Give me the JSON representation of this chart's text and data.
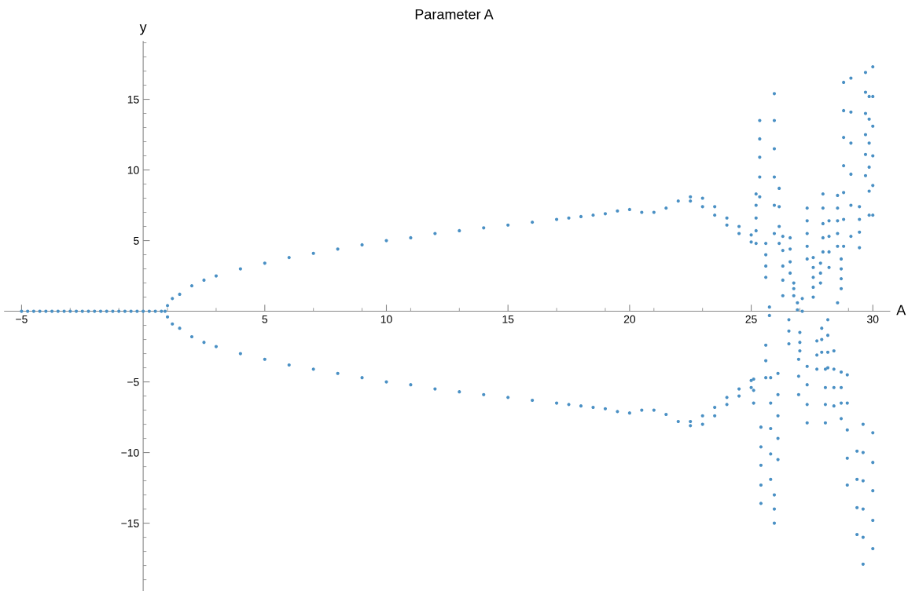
{
  "chart_data": {
    "type": "scatter",
    "title": "Parameter A",
    "xlabel": "A",
    "ylabel": "y",
    "xlim": [
      -5.7,
      30.7
    ],
    "ylim": [
      -19.8,
      19.1
    ],
    "xticks": [
      -5,
      5,
      10,
      15,
      20,
      25,
      30
    ],
    "yticks": [
      -15,
      -10,
      -5,
      5,
      10,
      15
    ],
    "grid": false,
    "legend": false,
    "marker": "circle",
    "series": [
      {
        "color": "#4a90c4",
        "x": [
          -5,
          -4.75,
          -4.5,
          -4.25,
          -4,
          -3.75,
          -3.5,
          -3.25,
          -3,
          -2.75,
          -2.5,
          -2.25,
          -2,
          -1.75,
          -1.5,
          -1.25,
          -1,
          -0.75,
          -0.5,
          -0.25,
          0,
          0.25,
          0.5,
          0.75,
          0.9
        ],
        "values": [
          0,
          0,
          0,
          0,
          0,
          0,
          0,
          0,
          0,
          0,
          0,
          0,
          0,
          0,
          0,
          0,
          0,
          0,
          0,
          0,
          0,
          0,
          0,
          0,
          0
        ]
      },
      {
        "color": "#4a90c4",
        "x": [
          1.0,
          1.2,
          1.5,
          2,
          2.5,
          3,
          4,
          5,
          6,
          7,
          8,
          9,
          10,
          11,
          12,
          13,
          14,
          15,
          16,
          17,
          17.5,
          18,
          18.5,
          19,
          19.5,
          20,
          20.5,
          21,
          21.5,
          22,
          22.5,
          23,
          23.5,
          24,
          24.5,
          25,
          22.5,
          23,
          23.5,
          24,
          24.5,
          25
        ],
        "values": [
          0.4,
          0.9,
          1.2,
          1.8,
          2.2,
          2.5,
          3.0,
          3.4,
          3.8,
          4.1,
          4.4,
          4.7,
          5.0,
          5.2,
          5.5,
          5.7,
          5.9,
          6.1,
          6.3,
          6.5,
          6.6,
          6.7,
          6.8,
          6.9,
          7.1,
          7.2,
          7.0,
          7.0,
          7.3,
          7.8,
          8.1,
          8.0,
          7.4,
          6.6,
          6.0,
          5.4,
          7.8,
          7.4,
          6.8,
          6.1,
          5.5,
          4.9
        ]
      },
      {
        "color": "#4a90c4",
        "x": [
          1.0,
          1.2,
          1.5,
          2,
          2.5,
          3,
          4,
          5,
          6,
          7,
          8,
          9,
          10,
          11,
          12,
          13,
          14,
          15,
          16,
          17,
          17.5,
          18,
          18.5,
          19,
          19.5,
          20,
          20.5,
          21,
          21.5,
          22,
          22.5,
          23,
          23.5,
          24,
          24.5,
          25,
          22.5,
          23,
          23.5,
          24,
          24.5,
          25
        ],
        "values": [
          -0.4,
          -0.9,
          -1.2,
          -1.8,
          -2.2,
          -2.5,
          -3.0,
          -3.4,
          -3.8,
          -4.1,
          -4.4,
          -4.7,
          -5.0,
          -5.2,
          -5.5,
          -5.7,
          -5.9,
          -6.1,
          -6.3,
          -6.5,
          -6.6,
          -6.7,
          -6.8,
          -6.9,
          -7.1,
          -7.2,
          -7.0,
          -7.0,
          -7.3,
          -7.8,
          -8.1,
          -8.0,
          -7.4,
          -6.6,
          -6.0,
          -5.4,
          -7.8,
          -7.4,
          -6.8,
          -6.1,
          -5.5,
          -4.9
        ]
      },
      {
        "color": "#4a90c4",
        "x": [
          25.2,
          25.2,
          25.2,
          25.2,
          25.2,
          25.35,
          25.35,
          25.35,
          25.35,
          25.35,
          25.6,
          25.6,
          25.6,
          25.6,
          25.75,
          25.75,
          25.95,
          25.95,
          25.95,
          25.95,
          25.95,
          25.95,
          26.15,
          26.15,
          26.15,
          26.15,
          26.3,
          26.3,
          26.3,
          26.3,
          26.3,
          26.6,
          26.6,
          26.6,
          26.6,
          26.75,
          26.75,
          26.75,
          26.9,
          26.9,
          27.1,
          27.1,
          27.3,
          27.3,
          27.3,
          27.3,
          27.3,
          27.55,
          27.55,
          27.55,
          27.55,
          27.55,
          27.85,
          27.85,
          27.85,
          27.95,
          27.95,
          27.95,
          27.95,
          27.95,
          28.2,
          28.2,
          28.2,
          28.2,
          28.55,
          28.55,
          28.55,
          28.55,
          28.55,
          28.55,
          28.7,
          28.7,
          28.7,
          28.7,
          28.8,
          28.8,
          28.8,
          28.8,
          28.8,
          28.8,
          28.8,
          29.1,
          29.1,
          29.1,
          29.1,
          29.1,
          29.1,
          29.45,
          29.45,
          29.45,
          29.45,
          29.7,
          29.7,
          29.7,
          29.7,
          29.7,
          29.7,
          29.85,
          29.85,
          29.85,
          29.85,
          29.85,
          29.85,
          30.0,
          30.0,
          30.0,
          30.0,
          30.0,
          30.0
        ],
        "values": [
          4.8,
          5.7,
          6.6,
          7.5,
          8.3,
          8.1,
          9.5,
          10.9,
          12.2,
          13.5,
          2.4,
          3.2,
          4.0,
          4.8,
          0.3,
          -0.3,
          5.5,
          7.5,
          9.5,
          11.5,
          13.5,
          15.4,
          4.8,
          6.0,
          7.4,
          8.7,
          1.1,
          2.2,
          3.2,
          4.3,
          5.3,
          2.7,
          3.5,
          4.4,
          5.2,
          1.1,
          1.6,
          2.0,
          0.1,
          0.6,
          0,
          0.9,
          3.7,
          4.6,
          5.5,
          6.4,
          7.3,
          1.0,
          1.7,
          2.4,
          3.1,
          3.8,
          2.0,
          2.7,
          3.4,
          4.2,
          5.2,
          6.2,
          7.3,
          8.3,
          3.1,
          4.2,
          5.3,
          6.4,
          4.6,
          5.5,
          6.4,
          7.3,
          8.2,
          0.6,
          1.6,
          2.3,
          3.0,
          3.7,
          4.6,
          6.5,
          8.4,
          10.3,
          12.3,
          14.2,
          16.2,
          5.3,
          7.5,
          9.7,
          11.9,
          14.1,
          16.5,
          4.5,
          5.6,
          6.5,
          7.4,
          9.6,
          11.1,
          12.5,
          14.0,
          15.5,
          16.9,
          6.8,
          8.5,
          10.2,
          11.9,
          13.6,
          15.2,
          6.8,
          8.9,
          11.0,
          13.1,
          15.2,
          17.3
        ]
      },
      {
        "color": "#4a90c4",
        "x": [
          25.1,
          25.1,
          25.1,
          25.4,
          25.4,
          25.4,
          25.4,
          25.4,
          25.6,
          25.6,
          25.6,
          25.8,
          25.8,
          25.8,
          25.8,
          25.8,
          25.95,
          25.95,
          25.95,
          26.1,
          26.1,
          26.1,
          26.1,
          26.1,
          26.55,
          26.55,
          26.55,
          26.95,
          26.95,
          26.95,
          27.0,
          27.0,
          27.0,
          27.3,
          27.3,
          27.3,
          27.3,
          27.7,
          27.7,
          27.7,
          27.9,
          27.9,
          27.9,
          28.05,
          28.05,
          28.05,
          28.05,
          28.15,
          28.15,
          28.15,
          28.15,
          28.4,
          28.4,
          28.4,
          28.4,
          28.7,
          28.7,
          28.7,
          28.7,
          28.95,
          28.95,
          28.95,
          28.95,
          28.95,
          29.35,
          29.35,
          29.35,
          29.35,
          29.6,
          29.6,
          29.6,
          29.6,
          29.6,
          29.6,
          30.0,
          30.0,
          30.0,
          30.0,
          30.0
        ],
        "values": [
          -4.8,
          -5.6,
          -6.5,
          -8.2,
          -9.6,
          -10.9,
          -12.3,
          -13.6,
          -2.4,
          -3.5,
          -4.7,
          -4.7,
          -6.5,
          -8.3,
          -10.1,
          -11.9,
          -13.0,
          -14.0,
          -15.0,
          -4.4,
          -5.9,
          -7.4,
          -9.0,
          -10.5,
          -0.6,
          -1.4,
          -2.3,
          -3.4,
          -4.6,
          -5.9,
          -1.5,
          -2.2,
          -2.8,
          -3.9,
          -5.2,
          -6.6,
          -7.9,
          -2.1,
          -3.1,
          -4.1,
          -1.2,
          -2.0,
          -2.9,
          -4.1,
          -5.4,
          -6.6,
          -7.9,
          -0.6,
          -1.7,
          -2.9,
          -4.0,
          -2.8,
          -4.1,
          -5.4,
          -6.7,
          -4.3,
          -5.4,
          -6.5,
          -7.6,
          -4.5,
          -6.5,
          -8.4,
          -10.4,
          -12.3,
          -9.9,
          -11.9,
          -13.9,
          -15.8,
          -8.0,
          -10.0,
          -12.0,
          -14.0,
          -16.0,
          -17.9,
          -8.6,
          -10.7,
          -12.7,
          -14.8,
          -16.8
        ]
      }
    ]
  }
}
